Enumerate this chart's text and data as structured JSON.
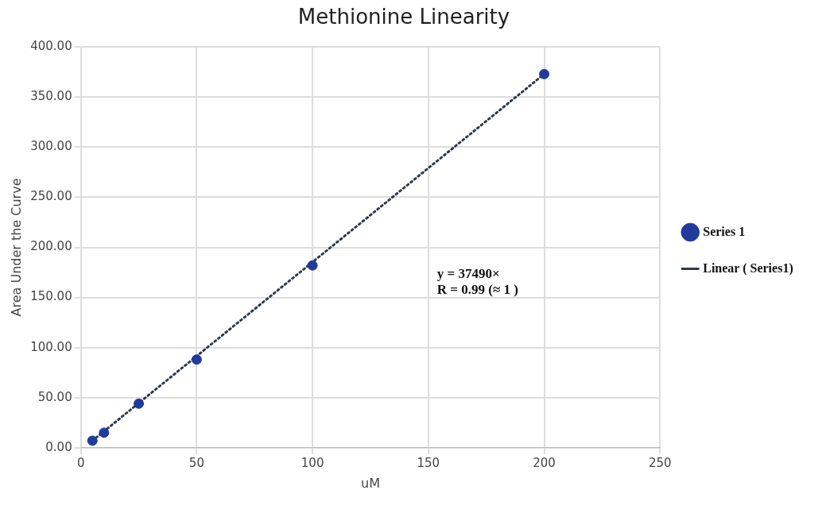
{
  "chart_data": {
    "type": "scatter",
    "title": "Methionine Linearity",
    "xlabel": "uM",
    "ylabel": "Area Under the Curve",
    "xlim": [
      0,
      250
    ],
    "xticks": [
      0,
      50,
      100,
      150,
      200,
      250
    ],
    "ylim": [
      0,
      400
    ],
    "yticks": [
      {
        "value": 0,
        "label": "0.00"
      },
      {
        "value": 50,
        "label": "50.00"
      },
      {
        "value": 100,
        "label": "100.00"
      },
      {
        "value": 150,
        "label": "150.00"
      },
      {
        "value": 200,
        "label": "200.00"
      },
      {
        "value": 250,
        "label": "250.00"
      },
      {
        "value": 300,
        "label": "300.00"
      },
      {
        "value": 350,
        "label": "350.00"
      },
      {
        "value": 400,
        "label": "400.00"
      }
    ],
    "grid": true,
    "legend": "right",
    "annotations": [
      "y = 37490×",
      "R = 0.99 (≈ 1 )"
    ],
    "series": [
      {
        "name": "Series 1",
        "marker": "circle",
        "color": "#1f3c9c",
        "x": [
          5,
          10,
          25,
          50,
          100,
          200
        ],
        "values": [
          7,
          15,
          44,
          88,
          182,
          373
        ]
      },
      {
        "name": "Linear ( Series1)",
        "type": "line",
        "line_style": "dotted",
        "marker": "none",
        "color": "#2e3a4a",
        "x": [
          5,
          200
        ],
        "values": [
          7,
          373
        ]
      }
    ]
  }
}
